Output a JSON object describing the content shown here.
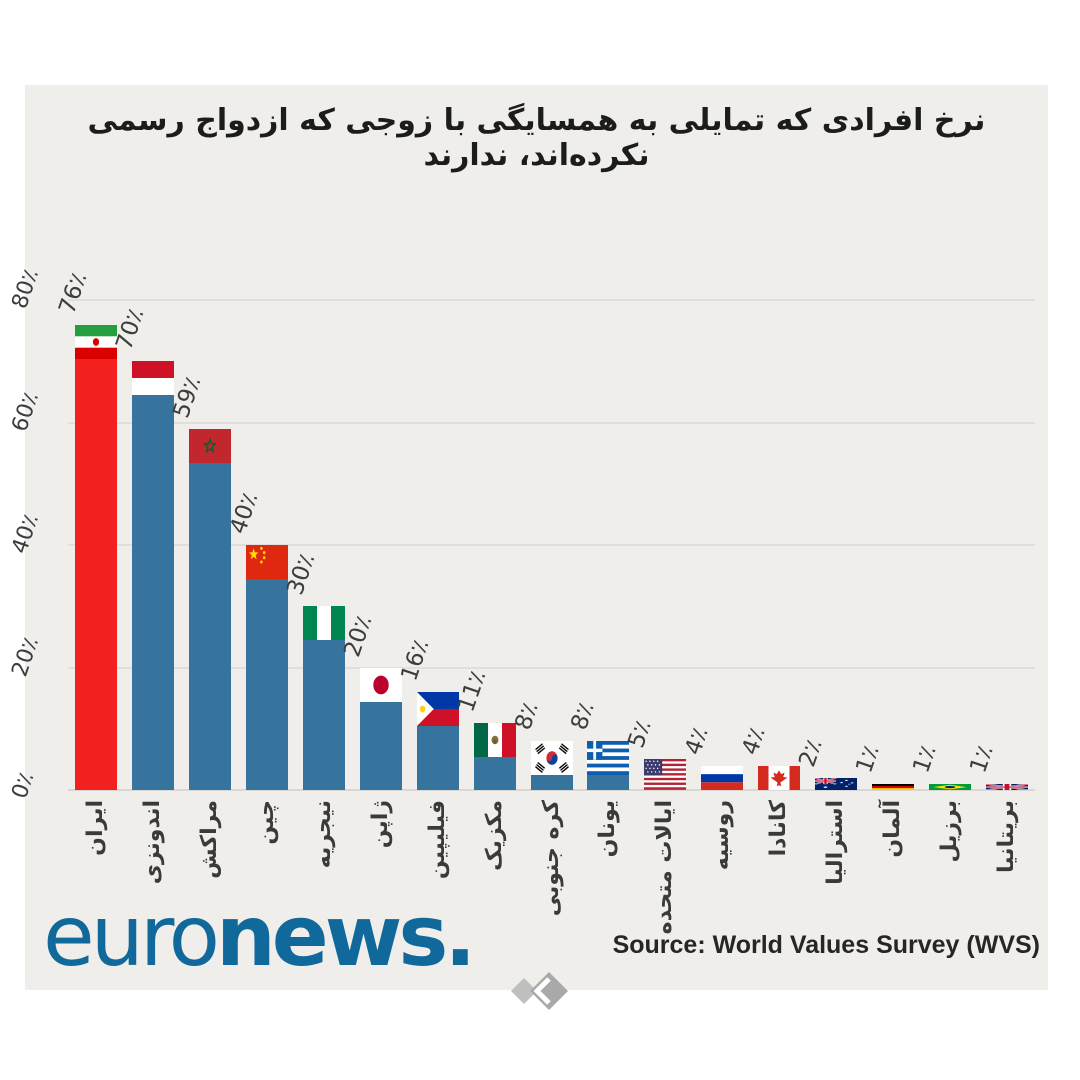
{
  "page": {
    "background": "#ffffff",
    "panel_background": "#efeeeb"
  },
  "header": {
    "title": "نرخ افرادی که تمایلی به همسایگی با زوجی که ازدواج رسمی نکرده‌اند، ندارند"
  },
  "footer": {
    "logo": {
      "euro": "euro",
      "news": "news",
      "dot": ".",
      "color": "#11689b"
    },
    "source": "Source: World Values Survey (WVS)",
    "watermark": "double-diamond-logo"
  },
  "chart_data": {
    "type": "bar",
    "title": "نرخ افرادی که تمایلی به همسایگی با زوجی که ازدواج رسمی نکرده‌اند، ندارند",
    "categories": [
      "ایران",
      "اندونزی",
      "مراکش",
      "چین",
      "نیجریه",
      "ژاپن",
      "فیلیپین",
      "مکزیک",
      "کره جنوبی",
      "یونان",
      "ایالات متحده",
      "روسیه",
      "کانادا",
      "استرالیا",
      "آلمان",
      "برزیل",
      "بریتانیا"
    ],
    "categories_en": [
      "Iran",
      "Indonesia",
      "Morocco",
      "China",
      "Nigeria",
      "Japan",
      "Philippines",
      "Mexico",
      "South Korea",
      "Greece",
      "United States",
      "Russia",
      "Canada",
      "Australia",
      "Germany",
      "Brazil",
      "United Kingdom"
    ],
    "values": [
      76,
      70,
      59,
      40,
      30,
      20,
      16,
      11,
      8,
      8,
      5,
      4,
      4,
      2,
      1,
      1,
      1
    ],
    "value_labels": [
      "76٪",
      "70٪",
      "59٪",
      "40٪",
      "30٪",
      "20٪",
      "16٪",
      "11٪",
      "8٪",
      "8٪",
      "5٪",
      "4٪",
      "4٪",
      "2٪",
      "1٪",
      "1٪",
      "1٪"
    ],
    "flags": [
      "iran",
      "indonesia",
      "morocco",
      "china",
      "nigeria",
      "japan",
      "philippines",
      "mexico",
      "south-korea",
      "greece",
      "usa",
      "russia",
      "canada",
      "australia",
      "germany",
      "brazil",
      "uk"
    ],
    "xlabel": "",
    "ylabel": "",
    "ylim": [
      0,
      80
    ],
    "yticks": [
      0,
      20,
      40,
      60,
      80
    ],
    "ytick_labels": [
      "0٪",
      "20٪",
      "40٪",
      "60٪",
      "80٪"
    ],
    "grid": true,
    "legend": "none",
    "bar_color": "#36749e",
    "highlight": {
      "index": 0,
      "color": "#f32020"
    },
    "flag_on_top_of_bar": true
  }
}
